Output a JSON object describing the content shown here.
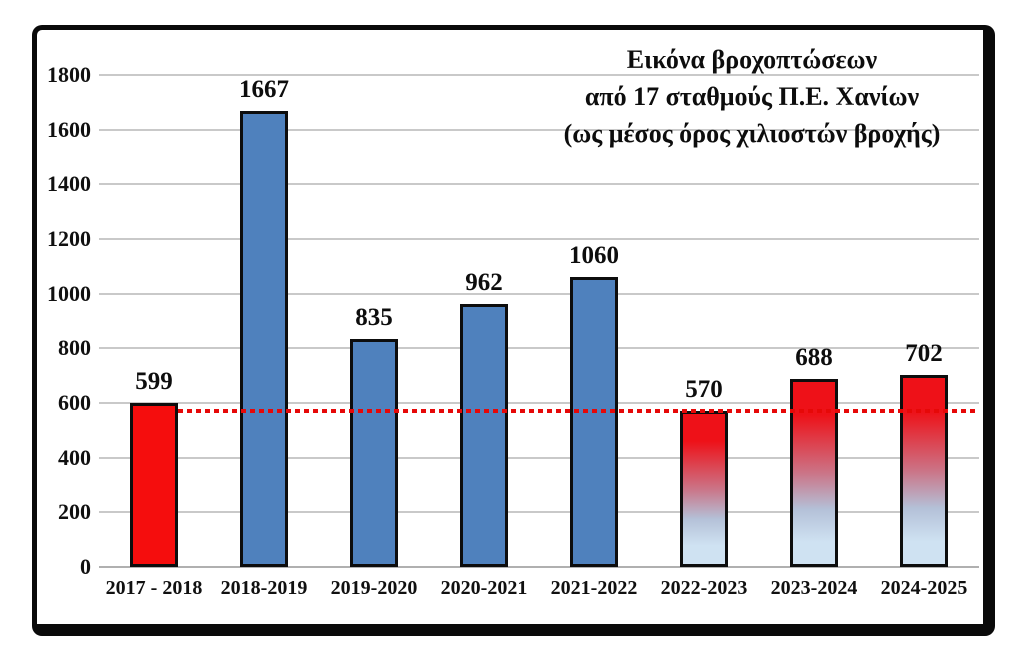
{
  "chart_data": {
    "type": "bar",
    "title_lines": [
      "Εικόνα βροχοπτώσεων",
      "από 17 σταθμούς Π.Ε. Χανίων",
      "(ως μέσος όρος χιλιοστών βροχής)"
    ],
    "categories": [
      "2017 - 2018",
      "2018-2019",
      "2019-2020",
      "2020-2021",
      "2021-2022",
      "2022-2023",
      "2023-2024",
      "2024-2025"
    ],
    "values": [
      599,
      1667,
      835,
      962,
      1060,
      570,
      688,
      702
    ],
    "bar_styles": [
      "solid-red",
      "solid-blue",
      "solid-blue",
      "solid-blue",
      "solid-blue",
      "gradient-red-blue",
      "gradient-red-blue",
      "gradient-red-blue"
    ],
    "xlabel": "",
    "ylabel": "",
    "ylim": [
      0,
      1800
    ],
    "ytick_step": 200,
    "grid": "horizontal",
    "legend": "none",
    "reference_line": {
      "value": 570,
      "style": "dotted",
      "color": "#e60808",
      "starts_after_category_index": 0
    },
    "colors": {
      "red_bar": "#f50d0d",
      "blue_bar": "#4f81bd",
      "gradient_top": "#ee1118",
      "gradient_mid": "#cb7487",
      "gradient_low": "#b4c1d8",
      "gradient_bottom": "#cfe2f2",
      "bar_border": "#0d0d0d",
      "gridline": "#c9c9c9",
      "text": "#0d0d0d"
    }
  }
}
